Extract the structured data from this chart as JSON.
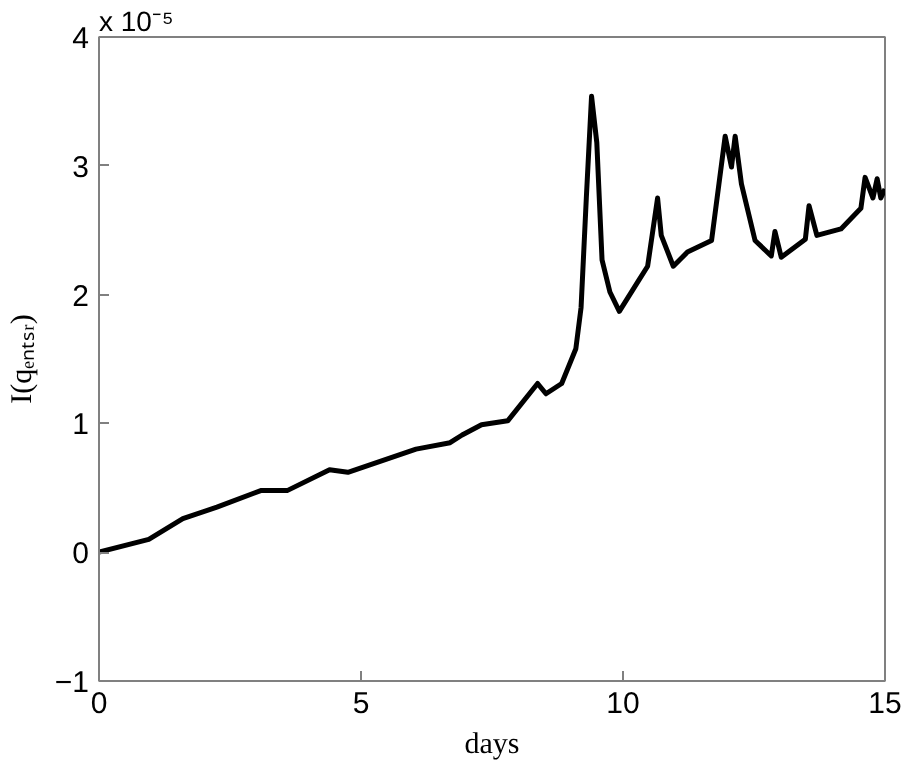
{
  "chart_data": {
    "type": "line",
    "xlabel": "days",
    "ylabel": "I(qₑₙₜₛᵣ)",
    "annotations": [
      "x 10⁻⁵"
    ],
    "x": [
      0,
      0.95,
      1.6,
      2.25,
      3.1,
      3.6,
      4.4,
      4.75,
      6.05,
      6.7,
      6.93,
      7.3,
      7.8,
      8.37,
      8.53,
      8.83,
      9.1,
      9.2,
      9.3,
      9.4,
      9.5,
      9.6,
      9.75,
      9.93,
      10.3,
      10.47,
      10.66,
      10.73,
      10.96,
      11.23,
      11.69,
      11.95,
      12.07,
      12.14,
      12.26,
      12.52,
      12.83,
      12.9,
      13.02,
      13.48,
      13.55,
      13.7,
      14.16,
      14.54,
      14.62,
      14.77,
      14.85,
      14.92,
      15.0
    ],
    "series": [
      {
        "color": "#000000",
        "values": [
          0,
          0.1,
          0.26,
          0.35,
          0.48,
          0.48,
          0.64,
          0.62,
          0.8,
          0.85,
          0.91,
          0.99,
          1.02,
          1.31,
          1.23,
          1.31,
          1.58,
          1.9,
          2.75,
          3.54,
          3.18,
          2.27,
          2.02,
          1.87,
          2.11,
          2.22,
          2.75,
          2.46,
          2.22,
          2.33,
          2.42,
          3.23,
          2.99,
          3.23,
          2.86,
          2.42,
          2.3,
          2.49,
          2.29,
          2.43,
          2.69,
          2.46,
          2.51,
          2.67,
          2.91,
          2.75,
          2.9,
          2.75,
          2.82
        ]
      }
    ],
    "xlim": [
      0,
      15
    ],
    "ylim": [
      -1,
      4
    ],
    "xticks": [
      0,
      5,
      10,
      15
    ],
    "yticks": [
      -1,
      0,
      1,
      2,
      3,
      4
    ],
    "grid": false
  }
}
